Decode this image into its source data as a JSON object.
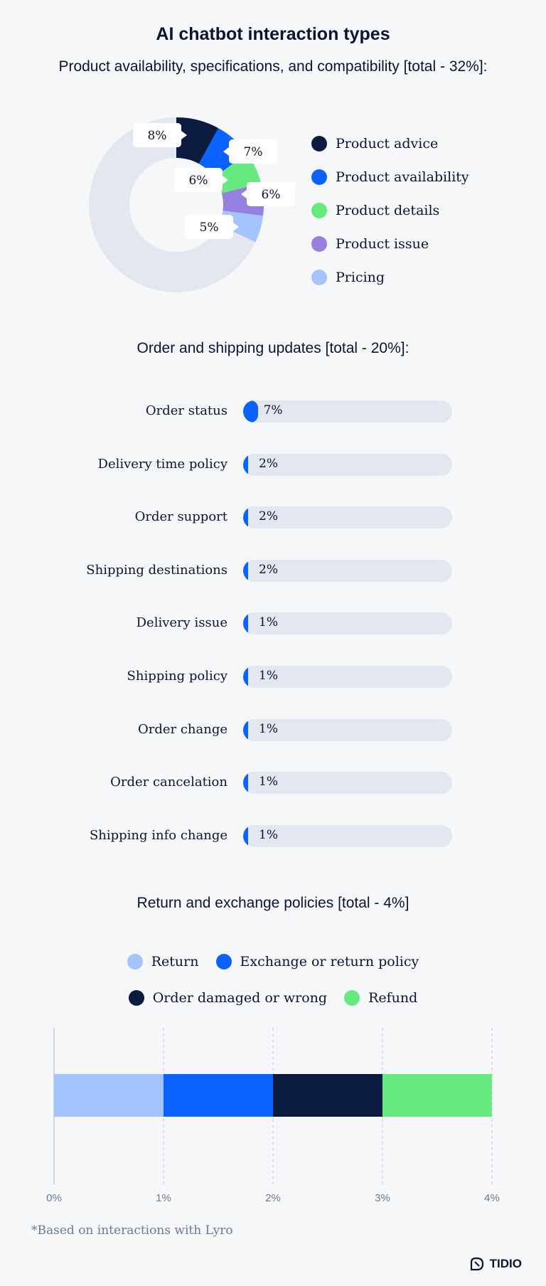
{
  "title": "AI chatbot interaction types",
  "sections": {
    "product_heading": "Product availability, specifications, and compatibility [total - 32%]:",
    "order_heading": "Order and shipping updates [total - 20%]:",
    "return_heading": "Return and exchange policies [total - 4%]"
  },
  "footnote": "*Based on interactions with Lyro",
  "brand": "TIDIO",
  "colors": {
    "dark_navy": "#0b1a3f",
    "blue": "#0b62ff",
    "green": "#66ea80",
    "purple": "#9580e0",
    "light_blue": "#a3c4ff",
    "track": "#e3e8f0"
  },
  "chart_data": [
    {
      "type": "pie",
      "title": "Product availability, specifications, and compatibility [total - 32%]:",
      "slices": [
        {
          "name": "Product advice",
          "value": 8,
          "label": "8%",
          "color": "#0b1a3f"
        },
        {
          "name": "Product availability",
          "value": 7,
          "label": "7%",
          "color": "#0b62ff"
        },
        {
          "name": "Product details",
          "value": 6,
          "label": "6%",
          "color": "#66ea80"
        },
        {
          "name": "Product issue",
          "value": 6,
          "label": "6%",
          "color": "#9580e0"
        },
        {
          "name": "Pricing",
          "value": 5,
          "label": "5%",
          "color": "#a3c4ff"
        }
      ],
      "remainder_color": "#e3e8f0",
      "total": 100,
      "legend": "right"
    },
    {
      "type": "bar",
      "orientation": "horizontal",
      "title": "Order and shipping updates [total - 20%]:",
      "categories": [
        "Order status",
        "Delivery time policy",
        "Order support",
        "Shipping destinations",
        "Delivery issue",
        "Shipping policy",
        "Order change",
        "Order cancelation",
        "Shipping info change"
      ],
      "values": [
        7,
        2,
        2,
        2,
        1,
        1,
        1,
        1,
        1
      ],
      "labels": [
        "7%",
        "2%",
        "2%",
        "2%",
        "1%",
        "1%",
        "1%",
        "1%",
        "1%"
      ],
      "xlim": [
        0,
        100
      ]
    },
    {
      "type": "bar",
      "orientation": "horizontal",
      "stacked": true,
      "title": "Return and exchange policies [total - 4%]",
      "series": [
        {
          "name": "Return",
          "value": 1,
          "color": "#a3c4ff"
        },
        {
          "name": "Exchange or return policy",
          "value": 1,
          "color": "#0b62ff"
        },
        {
          "name": "Order damaged or wrong",
          "value": 1,
          "color": "#0b1a3f"
        },
        {
          "name": "Refund",
          "value": 1,
          "color": "#66ea80"
        }
      ],
      "legend_rows": [
        [
          "Return",
          "Exchange or return policy"
        ],
        [
          "Order damaged or wrong",
          "Refund"
        ]
      ],
      "xticks": [
        "0%",
        "1%",
        "2%",
        "3%",
        "4%"
      ],
      "xlim": [
        0,
        4
      ],
      "grid": true,
      "legend": "top"
    }
  ]
}
